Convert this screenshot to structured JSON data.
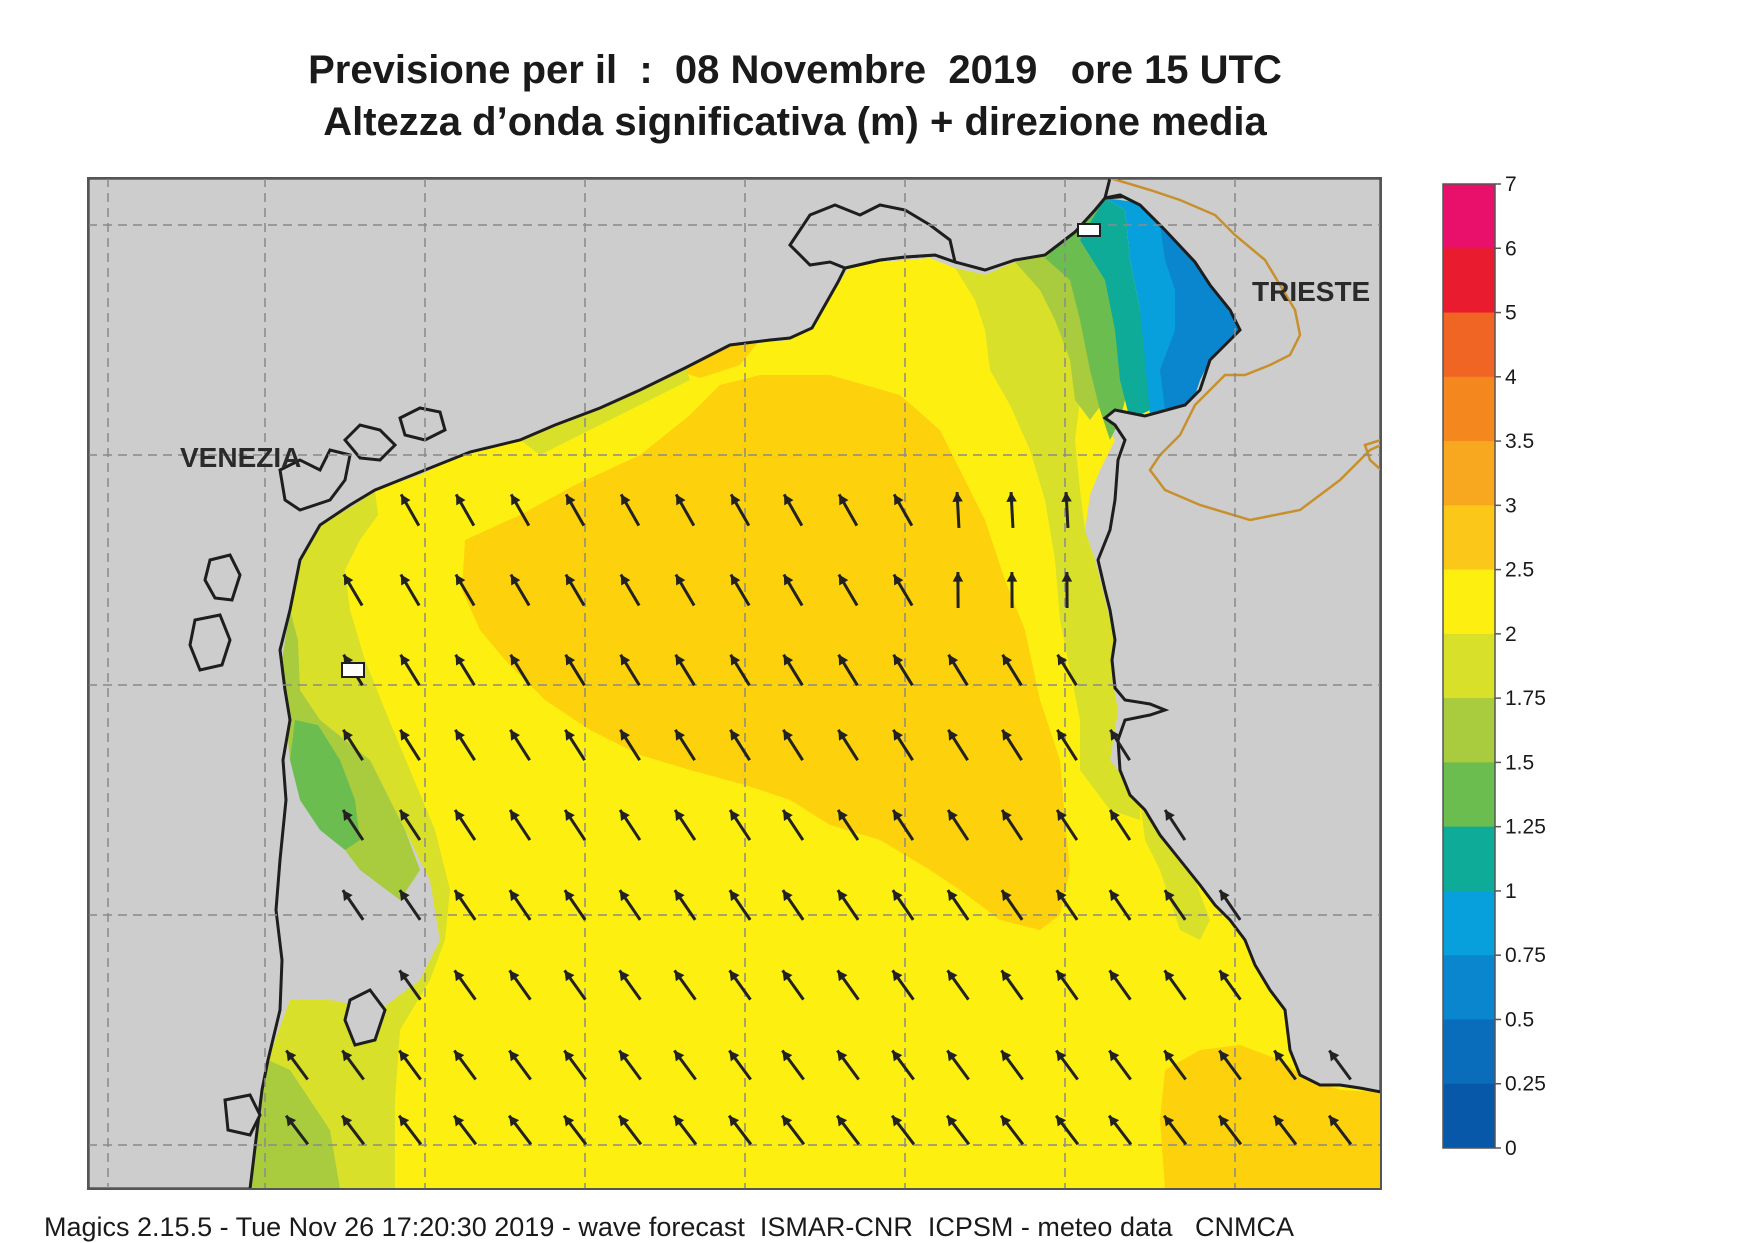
{
  "title": {
    "line1": "Previsione per il  :  08 Novembre  2019   ore 15 UTC",
    "line2": "Altezza d’onda significativa (m) + direzione media"
  },
  "cities": {
    "venezia": "VENEZIA",
    "trieste": "TRIESTE"
  },
  "footer": "Magics 2.15.5 - Tue Nov 26 17:20:30 2019 - wave forecast  ISMAR-CNR  ICPSM - meteo data   CNMCA",
  "colorbar": {
    "labels": [
      "7",
      "6",
      "5",
      "4",
      "3.5",
      "3",
      "2.5",
      "2",
      "1.75",
      "1.5",
      "1.25",
      "1",
      "0.75",
      "0.5",
      "0.25",
      "0"
    ],
    "colors": [
      "#e8106a",
      "#e81c2e",
      "#f06424",
      "#f5871f",
      "#f8a81e",
      "#fbc81a",
      "#fdf011",
      "#d8e02a",
      "#a8cc3e",
      "#6cbd50",
      "#0eab98",
      "#08a0dc",
      "#0a86cf",
      "#0a6dbb",
      "#0758a8"
    ]
  },
  "palette": {
    "land": "#cdcdcd",
    "sea_yellow": "#fdf011",
    "sea_gold": "#fdd20c",
    "coast": "#1e1e1e",
    "border": "#c8902c"
  }
}
